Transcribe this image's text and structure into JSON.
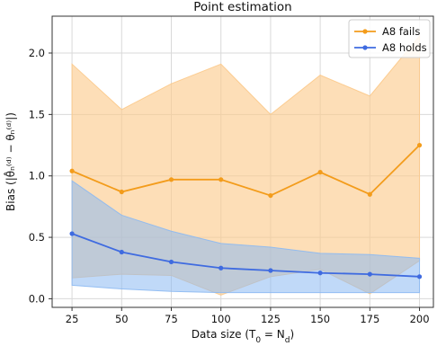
{
  "chart_data": {
    "type": "line",
    "title": "Point estimation",
    "xlabel": "Data size (T",
    "xlabel_sub1": "0",
    "xlabel_eq": " = N",
    "xlabel_sub2": "d",
    "xlabel_close": ")",
    "ylabel": "Bias (|θ̂ₙ⁽ᵈ⁾ − θₙ⁽ᵈ⁾|)",
    "x": [
      25,
      50,
      75,
      100,
      125,
      150,
      175,
      200
    ],
    "x_ticks": [
      "25",
      "50",
      "75",
      "100",
      "125",
      "150",
      "175",
      "200"
    ],
    "y_ticks": [
      "0.0",
      "0.5",
      "1.0",
      "1.5",
      "2.0"
    ],
    "xlim": [
      15,
      207
    ],
    "ylim": [
      -0.07,
      2.3
    ],
    "grid": true,
    "legend_position": "top-right",
    "series": [
      {
        "name": "A8 fails",
        "color": "#f39c1b",
        "band_color": "#fcc98a",
        "values": [
          1.04,
          0.87,
          0.97,
          0.97,
          0.84,
          1.03,
          0.85,
          1.25
        ],
        "upper": [
          1.91,
          1.54,
          1.75,
          1.91,
          1.5,
          1.82,
          1.65,
          2.14
        ],
        "lower": [
          0.17,
          0.2,
          0.19,
          0.03,
          0.18,
          0.24,
          0.04,
          0.31
        ]
      },
      {
        "name": "A8 holds",
        "color": "#3f6be0",
        "band_color": "#8cb9f2",
        "values": [
          0.53,
          0.38,
          0.3,
          0.25,
          0.23,
          0.21,
          0.2,
          0.18
        ],
        "upper": [
          0.96,
          0.68,
          0.55,
          0.45,
          0.42,
          0.37,
          0.36,
          0.33
        ],
        "lower": [
          0.11,
          0.08,
          0.06,
          0.05,
          0.05,
          0.05,
          0.05,
          0.05
        ]
      }
    ]
  }
}
